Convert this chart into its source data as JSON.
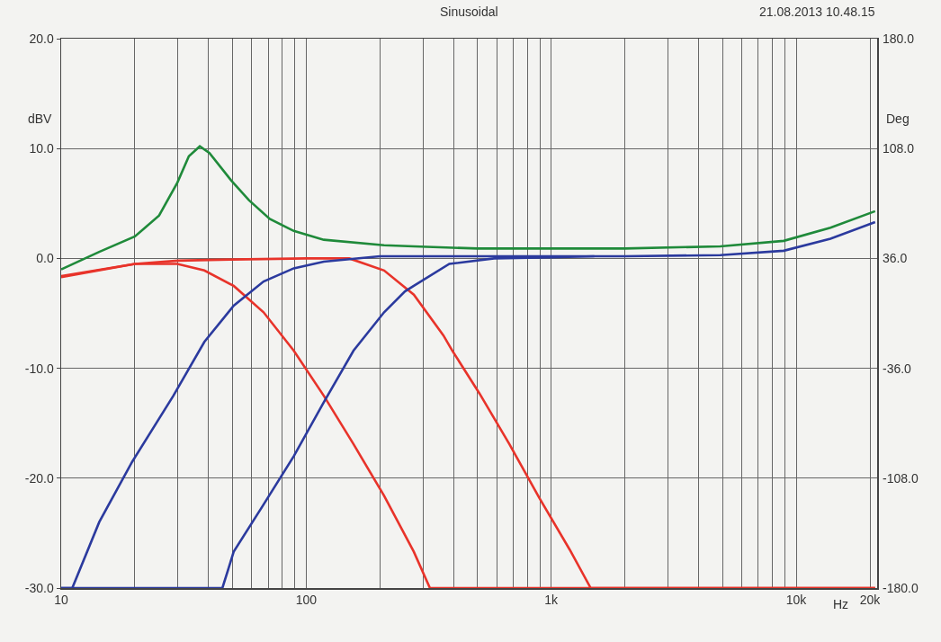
{
  "chart_data": {
    "type": "line",
    "title": "Sinusoidal",
    "xlabel": "Hz",
    "ylabel": "dBV",
    "y2label": "Deg",
    "annotations": [
      "21.08.2013 10.48.15"
    ],
    "log": "x",
    "grid": true,
    "line_style": "solid",
    "marker": "none",
    "xlim": [
      10,
      21400
    ],
    "ylim": [
      -30,
      20
    ],
    "y2lim": [
      -180,
      180
    ],
    "xticks": [
      {
        "value": 10,
        "label": "10"
      },
      {
        "value": 20,
        "label": null
      },
      {
        "value": 30,
        "label": null
      },
      {
        "value": 40,
        "label": null
      },
      {
        "value": 50,
        "label": null
      },
      {
        "value": 60,
        "label": null
      },
      {
        "value": 70,
        "label": null
      },
      {
        "value": 80,
        "label": null
      },
      {
        "value": 90,
        "label": null
      },
      {
        "value": 100,
        "label": "100"
      },
      {
        "value": 200,
        "label": null
      },
      {
        "value": 300,
        "label": null
      },
      {
        "value": 400,
        "label": null
      },
      {
        "value": 500,
        "label": null
      },
      {
        "value": 600,
        "label": null
      },
      {
        "value": 700,
        "label": null
      },
      {
        "value": 800,
        "label": null
      },
      {
        "value": 900,
        "label": null
      },
      {
        "value": 1000,
        "label": "1k"
      },
      {
        "value": 2000,
        "label": null
      },
      {
        "value": 3000,
        "label": null
      },
      {
        "value": 4000,
        "label": null
      },
      {
        "value": 5000,
        "label": null
      },
      {
        "value": 6000,
        "label": null
      },
      {
        "value": 7000,
        "label": null
      },
      {
        "value": 8000,
        "label": null
      },
      {
        "value": 9000,
        "label": null
      },
      {
        "value": 10000,
        "label": "10k"
      },
      {
        "value": 20000,
        "label": "20k"
      }
    ],
    "yticks": [
      {
        "value": -30,
        "label": "-30.0"
      },
      {
        "value": -20,
        "label": "-20.0"
      },
      {
        "value": -10,
        "label": "-10.0"
      },
      {
        "value": 0,
        "label": "0.0"
      },
      {
        "value": 10,
        "label": "10.0"
      },
      {
        "value": 20,
        "label": "20.0"
      }
    ],
    "y2ticks": [
      {
        "value": -180,
        "label": "-180.0"
      },
      {
        "value": -108,
        "label": "-108.0"
      },
      {
        "value": -36,
        "label": "-36.0"
      },
      {
        "value": 36,
        "label": "36.0"
      },
      {
        "value": 108,
        "label": "108.0"
      },
      {
        "value": 180,
        "label": "180.0"
      }
    ],
    "series": [
      {
        "color": "#1f8a3a",
        "x": [
          10,
          14.3,
          20,
          25.1,
          29.8,
          33.2,
          36.8,
          40.3,
          49.4,
          58.4,
          71,
          89,
          118,
          208,
          275,
          500,
          1000,
          2000,
          4900,
          8900,
          13800,
          21000
        ],
        "values": [
          -1.0,
          0.6,
          2.0,
          3.9,
          6.9,
          9.3,
          10.2,
          9.6,
          7.1,
          5.3,
          3.6,
          2.5,
          1.7,
          1.2,
          1.1,
          0.9,
          0.9,
          0.9,
          1.1,
          1.6,
          2.8,
          4.3
        ]
      },
      {
        "color": "#e8332a",
        "x": [
          10,
          20,
          29.8,
          38.4,
          50.6,
          67,
          89,
          118,
          156,
          208,
          275,
          320,
          21000
        ],
        "values": [
          -1.6,
          -0.5,
          -0.5,
          -1.1,
          -2.5,
          -4.9,
          -8.4,
          -12.5,
          -16.9,
          -21.6,
          -26.7,
          -30,
          -30
        ]
      },
      {
        "color": "#e8332a",
        "x": [
          10,
          20,
          30,
          50,
          100,
          150,
          208,
          275,
          363,
          395,
          510,
          675,
          895,
          1190,
          1450,
          21000
        ],
        "values": [
          -1.7,
          -0.5,
          -0.2,
          -0.1,
          0,
          0,
          -1.1,
          -3.3,
          -7.0,
          -8.4,
          -12.3,
          -16.9,
          -21.8,
          -26.5,
          -30,
          -30
        ]
      },
      {
        "color": "#2b3a9e",
        "x": [
          10,
          11.1,
          14.3,
          19.5,
          28.7,
          38.4,
          50.6,
          67,
          89,
          118,
          200,
          500,
          1000,
          2000,
          4900,
          8900,
          13800,
          21000
        ],
        "values": [
          -30,
          -30,
          -24,
          -18.5,
          -12.5,
          -7.6,
          -4.3,
          -2.1,
          -0.9,
          -0.3,
          0.2,
          0.2,
          0.2,
          0.2,
          0.3,
          0.7,
          1.8,
          3.3
        ]
      },
      {
        "color": "#2b3a9e",
        "x": [
          10,
          45.5,
          50.6,
          67,
          89,
          118,
          156,
          208,
          253,
          275,
          384,
          585,
          1000,
          1500
        ],
        "values": [
          -30,
          -30,
          -26.7,
          -22.4,
          -18,
          -13.1,
          -8.4,
          -4.9,
          -3.0,
          -2.5,
          -0.5,
          0,
          0.1,
          0.2
        ]
      }
    ]
  }
}
